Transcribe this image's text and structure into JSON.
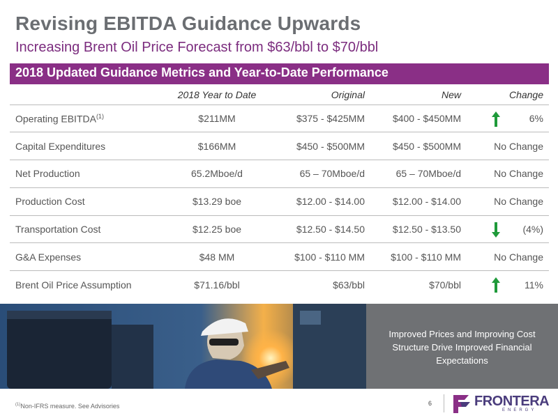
{
  "header": {
    "title": "Revising EBITDA Guidance Upwards",
    "subtitle": "Increasing Brent Oil Price Forecast from $63/bbl to $70/bbl"
  },
  "table": {
    "banner": "2018 Updated Guidance Metrics and Year-to-Date Performance",
    "columns": [
      "",
      "2018 Year to Date",
      "Original",
      "New",
      "Change"
    ],
    "rows": [
      {
        "metric": "Operating EBITDA",
        "footnote_mark": "(1)",
        "ytd": "$211MM",
        "original": "$375 - $425MM",
        "new": "$400 - $450MM",
        "change": "6%",
        "arrow": "up"
      },
      {
        "metric": "Capital Expenditures",
        "footnote_mark": "",
        "ytd": "$166MM",
        "original": "$450 - $500MM",
        "new": "$450 - $500MM",
        "change": "No Change",
        "arrow": "none"
      },
      {
        "metric": "Net Production",
        "footnote_mark": "",
        "ytd": "65.2Mboe/d",
        "original": "65 – 70Mboe/d",
        "new": "65 – 70Mboe/d",
        "change": "No Change",
        "arrow": "none"
      },
      {
        "metric": "Production Cost",
        "footnote_mark": "",
        "ytd": "$13.29 boe",
        "original": "$12.00 - $14.00",
        "new": "$12.00 - $14.00",
        "change": "No Change",
        "arrow": "none"
      },
      {
        "metric": "Transportation Cost",
        "footnote_mark": "",
        "ytd": "$12.25 boe",
        "original": "$12.50 - $14.50",
        "new": "$12.50 - $13.50",
        "change": "(4%)",
        "arrow": "down"
      },
      {
        "metric": "G&A Expenses",
        "footnote_mark": "",
        "ytd": "$48 MM",
        "original": "$100 - $110 MM",
        "new": "$100 - $110 MM",
        "change": "No Change",
        "arrow": "none"
      },
      {
        "metric": "Brent Oil Price Assumption",
        "footnote_mark": "",
        "ytd": "$71.16/bbl",
        "original": "$63/bbl",
        "new": "$70/bbl",
        "change": "11%",
        "arrow": "up"
      }
    ]
  },
  "callout": "Improved Prices and Improving Cost Structure Drive Improved Financial Expectations",
  "footer": {
    "footnote_mark": "(1)",
    "footnote": "Non-IFRS measure. See Advisories",
    "page_number": "6",
    "logo_word": "FRONTERA",
    "logo_sub": "ENERGY"
  },
  "colors": {
    "accent_purple": "#8a2f86",
    "subtitle_purple": "#7b2c7e",
    "arrow_green": "#1f9a3a",
    "callout_gray": "#6f7174"
  },
  "icons": {
    "up": "arrow-up-icon",
    "down": "arrow-down-icon",
    "logo": "frontera-logo-mark"
  }
}
